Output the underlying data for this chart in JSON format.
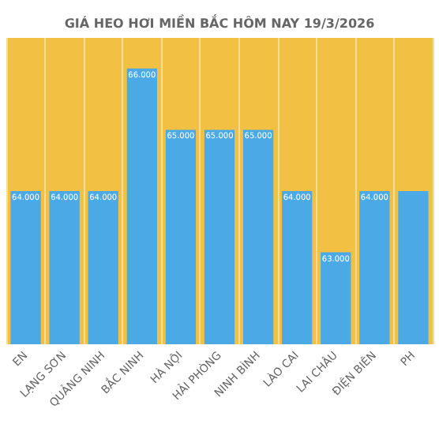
{
  "chart_data": {
    "type": "bar",
    "title": "GIÁ HEO HƠI MIỀN BẮC HÔM NAY 19/3/2026",
    "categories": [
      "EN",
      "LẠNG SƠN",
      "QUẢNG NINH",
      "BẮC NINH",
      "HÀ NỘI",
      "HẢI PHÒNG",
      "NINH BÌNH",
      "LÀO CAI",
      "LAI CHÂU",
      "ĐIỆN BIÊN",
      "PH"
    ],
    "values": [
      64000,
      64000,
      64000,
      66000,
      65000,
      65000,
      65000,
      64000,
      63000,
      64000,
      64000
    ],
    "value_labels": [
      "64.000",
      "64.000",
      "64.000",
      "66.000",
      "65.000",
      "65.000",
      "65.000",
      "64.000",
      "63.000",
      "64.000",
      null
    ],
    "color": "#4ba9e6",
    "ylim": [
      61500,
      66500
    ],
    "grid": "x",
    "tick_labels": "x"
  }
}
